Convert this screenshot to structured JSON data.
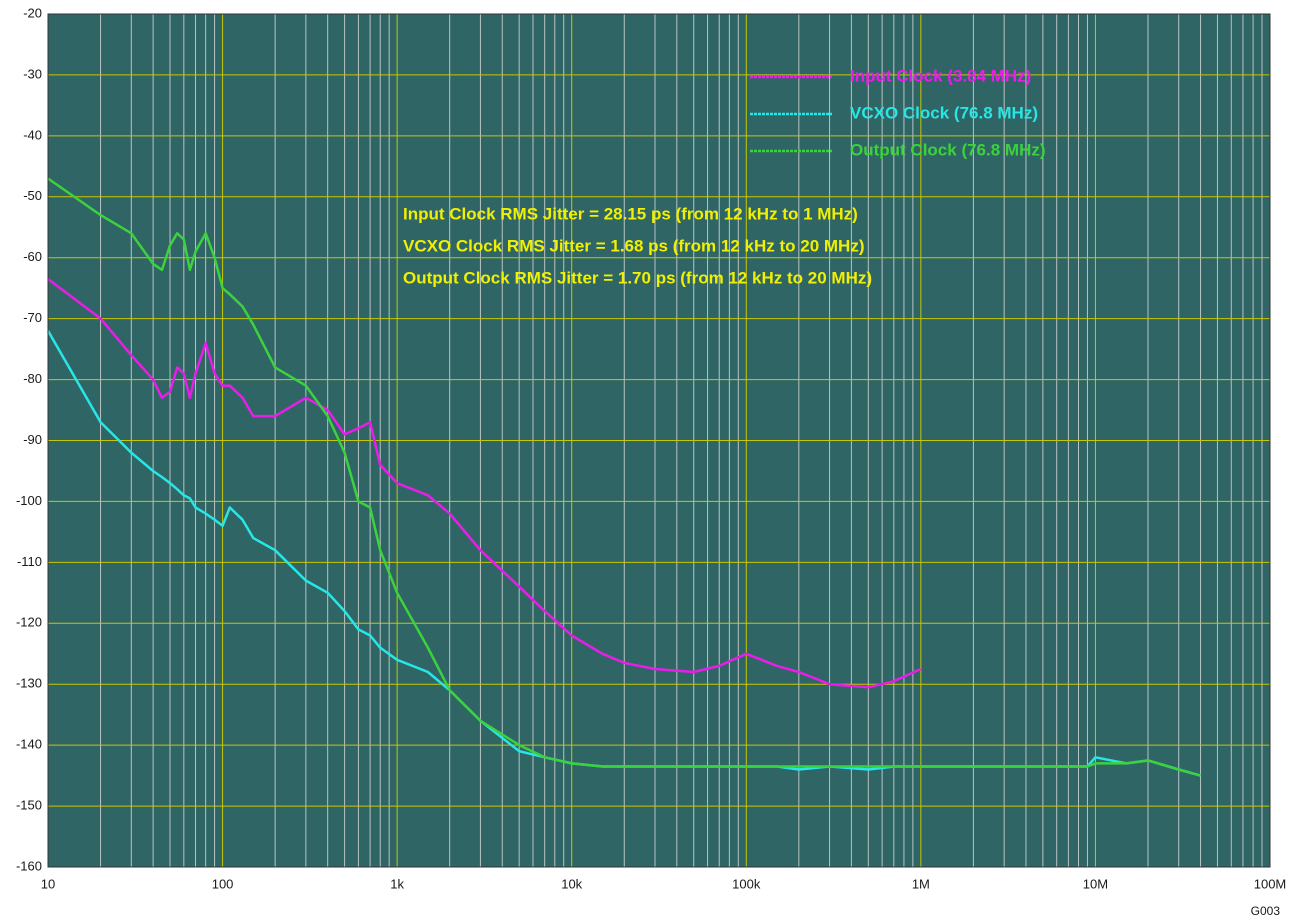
{
  "chart_data": {
    "type": "line",
    "x": [
      10,
      20,
      30,
      40,
      45,
      50,
      55,
      60,
      65,
      70,
      80,
      90,
      100,
      110,
      130,
      150,
      200,
      300,
      400,
      500,
      600,
      700,
      800,
      1000,
      1500,
      2000,
      3000,
      5000,
      7000,
      10000,
      15000,
      20000,
      30000,
      50000,
      70000,
      100000,
      150000,
      200000,
      300000,
      500000,
      700000,
      1000000,
      2000000,
      5000000,
      9000000,
      10000000,
      15000000,
      20000000,
      30000000,
      40000000
    ],
    "series": [
      {
        "name": "Input Clock (3.84 MHz)",
        "color": "#e81ee8",
        "values": [
          -63.5,
          -70,
          -76,
          -80,
          -83,
          -82,
          -78,
          -79,
          -83,
          -79,
          -74,
          -79,
          -81,
          -81,
          -83,
          -86,
          -86,
          -83,
          -85,
          -89,
          -88,
          -87,
          -94,
          -97,
          -99,
          -102,
          -108,
          -114,
          -118,
          -122,
          -125,
          -126.5,
          -127.5,
          -128,
          -127,
          -125,
          -127,
          -128,
          -130,
          -130.5,
          -129.5,
          -127.5,
          null,
          null,
          null,
          null,
          null,
          null,
          null,
          null
        ]
      },
      {
        "name": "VCXO Clock (76.8 MHz)",
        "color": "#28e6e6",
        "values": [
          -72,
          -87,
          -92,
          -95,
          -96,
          -97,
          -98,
          -99,
          -99.5,
          -101,
          -102,
          -103,
          -104,
          -101,
          -103,
          -106,
          -108,
          -113,
          -115,
          -118,
          -121,
          -122,
          -124,
          -126,
          -128,
          -131,
          -136,
          -141,
          -142,
          -143,
          -143.5,
          -143.5,
          -143.5,
          -143.5,
          -143.5,
          -143.5,
          -143.5,
          -144,
          -143.5,
          -144,
          -143.5,
          -143.5,
          -143.5,
          -143.5,
          -143.5,
          -142,
          -143,
          -142.5,
          -144,
          -145
        ]
      },
      {
        "name": "Output Clock (76.8 MHz)",
        "color": "#3cd23c",
        "values": [
          -47,
          -53,
          -56,
          -61,
          -62,
          -58,
          -56,
          -57,
          -62,
          -59,
          -56,
          -60,
          -65,
          -66,
          -68,
          -71,
          -78,
          -81,
          -86,
          -92,
          -100,
          -101,
          -108,
          -115,
          -124,
          -131,
          -136,
          -140,
          -142,
          -143,
          -143.5,
          -143.5,
          -143.5,
          -143.5,
          -143.5,
          -143.5,
          -143.5,
          -143.5,
          -143.5,
          -143.5,
          -143.5,
          -143.5,
          -143.5,
          -143.5,
          -143.5,
          -143,
          -143,
          -142.5,
          -144,
          -145
        ]
      }
    ],
    "xlim": [
      10,
      100000000
    ],
    "xticks": [
      10,
      100,
      {
        "value": 1000,
        "label": "1k"
      },
      {
        "value": 10000,
        "label": "10k"
      },
      {
        "value": 100000,
        "label": "100k"
      },
      {
        "value": 1000000,
        "label": "1M"
      },
      {
        "value": 10000000,
        "label": "10M"
      },
      {
        "value": 100000000,
        "label": "100M"
      }
    ],
    "ylim": [
      -160,
      -20
    ],
    "yticks": [
      -20,
      -30,
      -40,
      -50,
      -60,
      -70,
      -80,
      -90,
      -100,
      -110,
      -120,
      -130,
      -140,
      -150,
      -160
    ],
    "xscale": "log",
    "grid": true,
    "legend": "top-right",
    "annotations": [
      "Input Clock RMS Jitter = 28.15 ps (from 12 kHz to 1 MHz)",
      "VCXO Clock RMS Jitter = 1.68 ps (from 12 kHz to 20 MHz)",
      "Output Clock RMS Jitter = 1.70 ps (from 12 kHz to 20 MHz)"
    ],
    "figure_id": "G003"
  }
}
